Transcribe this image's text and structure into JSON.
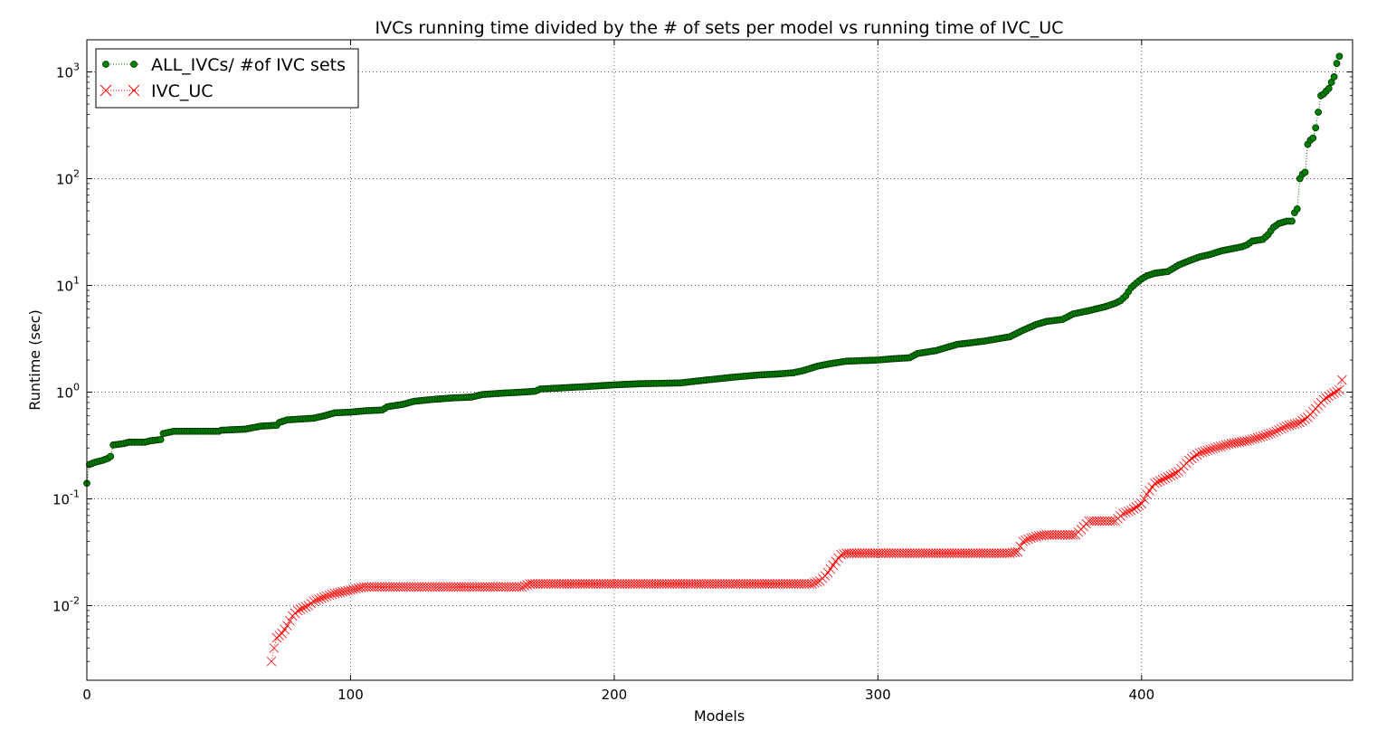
{
  "chart_data": {
    "type": "line",
    "title": "IVCs running time divided by the # of sets per model vs running time of IVC_UC",
    "xlabel": "Models",
    "ylabel": "Runtime (sec)",
    "xlim": [
      0,
      480
    ],
    "ylim": [
      0.002,
      2000
    ],
    "yscale": "log",
    "grid": true,
    "legend_position": "upper left",
    "x_ticks": [
      {
        "value": 0,
        "label": "0"
      },
      {
        "value": 100,
        "label": "100"
      },
      {
        "value": 200,
        "label": "200"
      },
      {
        "value": 300,
        "label": "300"
      },
      {
        "value": 400,
        "label": "400"
      }
    ],
    "y_ticks": [
      {
        "value": 0.01,
        "label_base": "10",
        "label_exp": "-2"
      },
      {
        "value": 0.1,
        "label_base": "10",
        "label_exp": "-1"
      },
      {
        "value": 1,
        "label_base": "10",
        "label_exp": "0"
      },
      {
        "value": 10,
        "label_base": "10",
        "label_exp": "1"
      },
      {
        "value": 100,
        "label_base": "10",
        "label_exp": "2"
      },
      {
        "value": 1000,
        "label_base": "10",
        "label_exp": "3"
      }
    ],
    "series": [
      {
        "name": "ALL_IVCs/ #of IVC sets",
        "color": "#006400",
        "marker": "circle",
        "linestyle": "dotted",
        "points": [
          [
            0,
            0.14
          ],
          [
            1,
            0.21
          ],
          [
            3,
            0.22
          ],
          [
            6,
            0.23
          ],
          [
            8,
            0.24
          ],
          [
            9,
            0.25
          ],
          [
            10,
            0.32
          ],
          [
            14,
            0.33
          ],
          [
            16,
            0.34
          ],
          [
            22,
            0.34
          ],
          [
            24,
            0.35
          ],
          [
            28,
            0.36
          ],
          [
            29,
            0.41
          ],
          [
            31,
            0.42
          ],
          [
            33,
            0.43
          ],
          [
            50,
            0.43
          ],
          [
            51,
            0.44
          ],
          [
            60,
            0.45
          ],
          [
            62,
            0.46
          ],
          [
            66,
            0.48
          ],
          [
            72,
            0.49
          ],
          [
            73,
            0.52
          ],
          [
            76,
            0.55
          ],
          [
            86,
            0.57
          ],
          [
            90,
            0.6
          ],
          [
            94,
            0.64
          ],
          [
            100,
            0.65
          ],
          [
            106,
            0.67
          ],
          [
            112,
            0.68
          ],
          [
            114,
            0.73
          ],
          [
            120,
            0.77
          ],
          [
            124,
            0.82
          ],
          [
            130,
            0.85
          ],
          [
            138,
            0.88
          ],
          [
            146,
            0.9
          ],
          [
            150,
            0.95
          ],
          [
            158,
            0.98
          ],
          [
            165,
            1.0
          ],
          [
            170,
            1.02
          ],
          [
            172,
            1.07
          ],
          [
            190,
            1.13
          ],
          [
            200,
            1.17
          ],
          [
            210,
            1.2
          ],
          [
            225,
            1.22
          ],
          [
            235,
            1.3
          ],
          [
            245,
            1.38
          ],
          [
            255,
            1.45
          ],
          [
            262,
            1.48
          ],
          [
            268,
            1.52
          ],
          [
            272,
            1.6
          ],
          [
            277,
            1.75
          ],
          [
            282,
            1.85
          ],
          [
            288,
            1.95
          ],
          [
            300,
            2.0
          ],
          [
            305,
            2.05
          ],
          [
            312,
            2.1
          ],
          [
            315,
            2.3
          ],
          [
            322,
            2.45
          ],
          [
            330,
            2.8
          ],
          [
            340,
            3.0
          ],
          [
            345,
            3.15
          ],
          [
            350,
            3.3
          ],
          [
            355,
            3.8
          ],
          [
            360,
            4.3
          ],
          [
            364,
            4.6
          ],
          [
            370,
            4.8
          ],
          [
            374,
            5.4
          ],
          [
            380,
            5.8
          ],
          [
            386,
            6.3
          ],
          [
            390,
            6.8
          ],
          [
            392,
            7.2
          ],
          [
            394,
            8.0
          ],
          [
            396,
            9.5
          ],
          [
            398,
            10.5
          ],
          [
            400,
            11.5
          ],
          [
            402,
            12.3
          ],
          [
            405,
            13.0
          ],
          [
            410,
            13.5
          ],
          [
            414,
            15.5
          ],
          [
            418,
            17.0
          ],
          [
            422,
            18.5
          ],
          [
            426,
            19.5
          ],
          [
            430,
            21.0
          ],
          [
            434,
            22.0
          ],
          [
            438,
            23.0
          ],
          [
            440,
            24.0
          ],
          [
            442,
            26.0
          ],
          [
            446,
            27.0
          ],
          [
            448,
            30.0
          ],
          [
            450,
            35.0
          ],
          [
            452,
            38.0
          ],
          [
            455,
            40.0
          ],
          [
            457,
            40.0
          ],
          [
            458,
            48.0
          ],
          [
            459,
            52.0
          ],
          [
            460,
            100.0
          ],
          [
            461,
            110.0
          ],
          [
            462,
            115.0
          ],
          [
            463,
            210.0
          ],
          [
            464,
            230.0
          ],
          [
            465,
            240.0
          ],
          [
            466,
            300.0
          ],
          [
            467,
            420.0
          ],
          [
            468,
            600.0
          ],
          [
            469,
            620.0
          ],
          [
            470,
            660.0
          ],
          [
            471,
            700.0
          ],
          [
            472,
            800.0
          ],
          [
            473,
            900.0
          ],
          [
            474,
            1200.0
          ],
          [
            475,
            1400.0
          ]
        ]
      },
      {
        "name": "IVC_UC",
        "color": "#ff0000",
        "marker": "x",
        "linestyle": "dotted",
        "points": [
          [
            70,
            0.003
          ],
          [
            71,
            0.004
          ],
          [
            72,
            0.005
          ],
          [
            74,
            0.0055
          ],
          [
            76,
            0.0065
          ],
          [
            78,
            0.008
          ],
          [
            80,
            0.009
          ],
          [
            82,
            0.0095
          ],
          [
            84,
            0.01
          ],
          [
            86,
            0.011
          ],
          [
            90,
            0.012
          ],
          [
            94,
            0.013
          ],
          [
            100,
            0.014
          ],
          [
            105,
            0.015
          ],
          [
            165,
            0.015
          ],
          [
            168,
            0.016
          ],
          [
            275,
            0.016
          ],
          [
            278,
            0.017
          ],
          [
            280,
            0.019
          ],
          [
            282,
            0.022
          ],
          [
            284,
            0.026
          ],
          [
            286,
            0.03
          ],
          [
            288,
            0.031
          ],
          [
            350,
            0.031
          ],
          [
            353,
            0.032
          ],
          [
            355,
            0.04
          ],
          [
            358,
            0.043
          ],
          [
            361,
            0.045
          ],
          [
            364,
            0.046
          ],
          [
            375,
            0.046
          ],
          [
            378,
            0.055
          ],
          [
            380,
            0.062
          ],
          [
            390,
            0.062
          ],
          [
            393,
            0.073
          ],
          [
            396,
            0.078
          ],
          [
            400,
            0.09
          ],
          [
            402,
            0.11
          ],
          [
            405,
            0.14
          ],
          [
            410,
            0.16
          ],
          [
            414,
            0.18
          ],
          [
            418,
            0.23
          ],
          [
            422,
            0.27
          ],
          [
            426,
            0.29
          ],
          [
            430,
            0.31
          ],
          [
            434,
            0.33
          ],
          [
            440,
            0.35
          ],
          [
            445,
            0.38
          ],
          [
            450,
            0.42
          ],
          [
            455,
            0.48
          ],
          [
            460,
            0.52
          ],
          [
            463,
            0.58
          ],
          [
            466,
            0.7
          ],
          [
            469,
            0.85
          ],
          [
            472,
            0.95
          ],
          [
            475,
            1.05
          ],
          [
            476,
            1.3
          ]
        ]
      }
    ]
  }
}
